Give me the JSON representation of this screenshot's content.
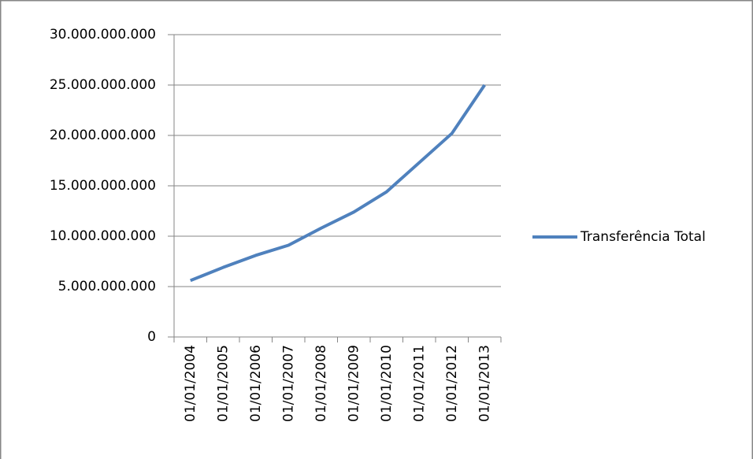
{
  "chart_data": {
    "type": "line",
    "categories": [
      "01/01/2004",
      "01/01/2005",
      "01/01/2006",
      "01/01/2007",
      "01/01/2008",
      "01/01/2009",
      "01/01/2010",
      "01/01/2011",
      "01/01/2012",
      "01/01/2013"
    ],
    "series": [
      {
        "name": "Transferência Total",
        "color": "#4f81bd",
        "values": [
          5600000000,
          6900000000,
          8100000000,
          9100000000,
          10800000000,
          12400000000,
          14400000000,
          17300000000,
          20200000000,
          25000000000
        ]
      }
    ],
    "ylim": [
      0,
      30000000000
    ],
    "yticks": [
      0,
      {
        "value": 5000000000,
        "label": "5.000.000.000"
      },
      {
        "value": 10000000000,
        "label": "10.000.000.000"
      },
      {
        "value": 15000000000,
        "label": "15.000.000.000"
      },
      {
        "value": 20000000000,
        "label": "20.000.000.000"
      },
      {
        "value": 25000000000,
        "label": "25.000.000.000"
      },
      {
        "value": 30000000000,
        "label": "30.000.000.000"
      }
    ],
    "grid": true,
    "legend": "right"
  }
}
